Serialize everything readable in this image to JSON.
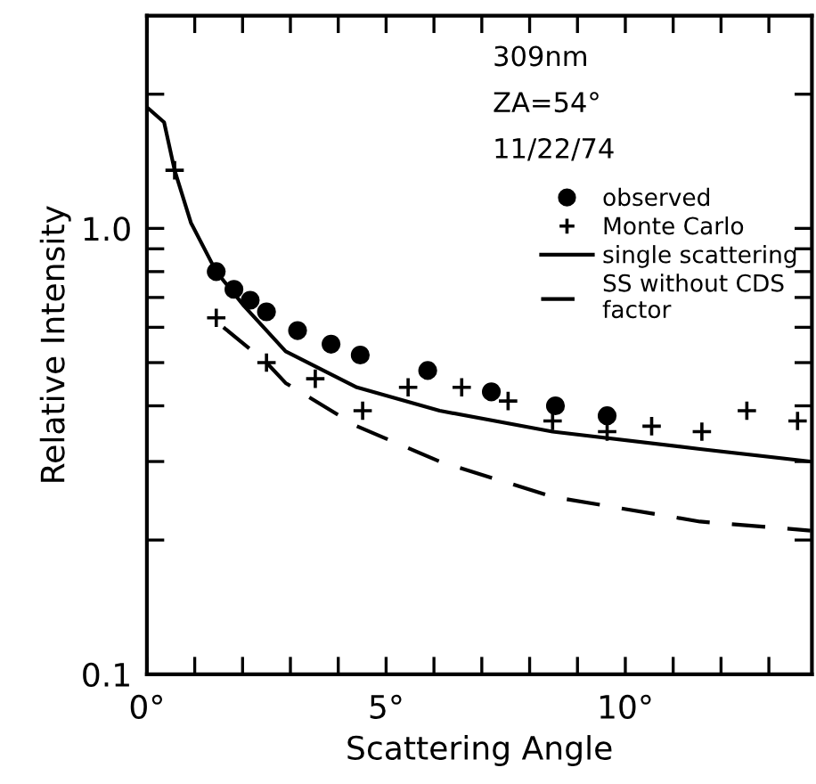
{
  "chart_data": {
    "type": "scatter",
    "xlabel": "Scattering Angle",
    "ylabel": "Relative Intensity",
    "annotations": [
      "309nm",
      "ZA=54°",
      "11/22/74"
    ],
    "log": "y",
    "xlim": [
      0,
      13.9
    ],
    "ylim": [
      0.1,
      3.0
    ],
    "xticks": [
      {
        "value": 0,
        "label": "0°"
      },
      {
        "value": 1,
        "label": null
      },
      {
        "value": 2,
        "label": null
      },
      {
        "value": 3,
        "label": null
      },
      {
        "value": 4,
        "label": null
      },
      {
        "value": 5,
        "label": "5°"
      },
      {
        "value": 6,
        "label": null
      },
      {
        "value": 7,
        "label": null
      },
      {
        "value": 8,
        "label": null
      },
      {
        "value": 9,
        "label": null
      },
      {
        "value": 10,
        "label": "10°"
      },
      {
        "value": 11,
        "label": null
      },
      {
        "value": 12,
        "label": null
      },
      {
        "value": 13,
        "label": null
      }
    ],
    "yticks": [
      0.1,
      {
        "value": 0.2,
        "label": null
      },
      {
        "value": 0.3,
        "label": null
      },
      {
        "value": 0.4,
        "label": null
      },
      {
        "value": 0.5,
        "label": null
      },
      {
        "value": 0.6,
        "label": null
      },
      {
        "value": 0.7,
        "label": null
      },
      {
        "value": 0.8,
        "label": null
      },
      {
        "value": 0.9,
        "label": null
      },
      {
        "value": 1,
        "label": "1.0"
      },
      {
        "value": 2,
        "label": null
      }
    ],
    "grid": false,
    "legend": "top right",
    "series": [
      {
        "name": "observed",
        "marker": "circle",
        "color": "#000000",
        "x": [
          1.45,
          1.82,
          2.16,
          2.5,
          3.15,
          3.85,
          4.46,
          5.87,
          7.2,
          8.54,
          9.62
        ],
        "values": [
          0.8,
          0.73,
          0.69,
          0.65,
          0.59,
          0.55,
          0.52,
          0.48,
          0.43,
          0.4,
          0.38
        ]
      },
      {
        "name": "Monte Carlo",
        "marker": "cross",
        "color": "#000000",
        "x": [
          0.58,
          1.45,
          2.5,
          3.52,
          4.51,
          5.46,
          6.58,
          7.55,
          8.48,
          9.62,
          10.55,
          11.6,
          12.54,
          13.6
        ],
        "values": [
          1.35,
          0.63,
          0.5,
          0.46,
          0.39,
          0.44,
          0.44,
          0.41,
          0.37,
          0.35,
          0.36,
          0.35,
          0.39,
          0.37
        ]
      },
      {
        "name": "single scattering",
        "type": "line",
        "line_style": "solid",
        "color": "#000000",
        "x": [
          0,
          0.36,
          0.58,
          0.92,
          1.45,
          2.03,
          2.9,
          4.39,
          6.12,
          8.48,
          11.56,
          13.87
        ],
        "values": [
          1.87,
          1.73,
          1.35,
          1.03,
          0.8,
          0.67,
          0.53,
          0.44,
          0.39,
          0.35,
          0.32,
          0.3
        ]
      },
      {
        "name": "SS without CDS\nfactor",
        "type": "line",
        "line_style": "dashed",
        "color": "#000000",
        "x": [
          1.6,
          2.5,
          2.9,
          4.39,
          6.12,
          8.48,
          11.56,
          13.87
        ],
        "values": [
          0.6,
          0.5,
          0.45,
          0.36,
          0.3,
          0.25,
          0.22,
          0.21
        ]
      }
    ]
  }
}
